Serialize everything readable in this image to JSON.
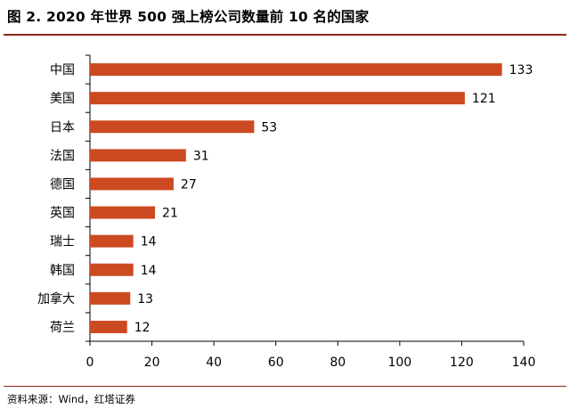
{
  "header": {
    "title": "图 2. 2020 年世界 500 强上榜公司数量前 10 名的国家"
  },
  "footer": {
    "source": "资料来源：Wind，红塔证券"
  },
  "colors": {
    "bar": "#cc4a21",
    "rule": "#8b2a1a",
    "axis": "#000000"
  },
  "chart_data": {
    "type": "bar",
    "orientation": "horizontal",
    "title": "图 2. 2020 年世界 500 强上榜公司数量前 10 名的国家",
    "categories": [
      "中国",
      "美国",
      "日本",
      "法国",
      "德国",
      "英国",
      "瑞士",
      "韩国",
      "加拿大",
      "荷兰"
    ],
    "values": [
      133,
      121,
      53,
      31,
      27,
      21,
      14,
      14,
      13,
      12
    ],
    "xlim": [
      0,
      140
    ],
    "xticks": [
      0,
      20,
      40,
      60,
      80,
      100,
      120,
      140
    ],
    "xlabel": "",
    "ylabel": "",
    "grid": false,
    "legend": "none"
  }
}
